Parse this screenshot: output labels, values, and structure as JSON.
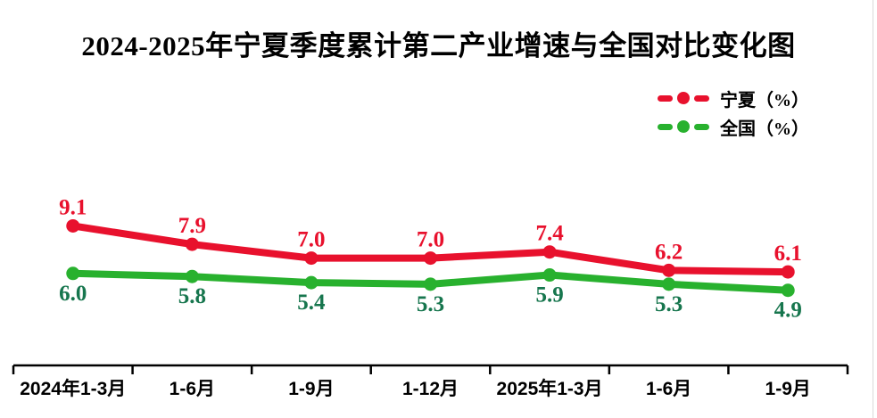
{
  "page": {
    "title": "2024-2025年宁夏季度累计第二产业增速与全国对比变化图"
  },
  "colors": {
    "ningxia_line": "#e8112d",
    "ningxia_label": "#e8112d",
    "national_line": "#28b12e",
    "national_label": "#17764e",
    "axis": "#000000",
    "edge_border": "#d9d9d9"
  },
  "chart_data": {
    "type": "line",
    "title": "2024-2025年宁夏季度累计第二产业增速与全国对比变化图",
    "categories": [
      "2024年1-3月",
      "1-6月",
      "1-9月",
      "1-12月",
      "2025年1-3月",
      "1-6月",
      "1-9月"
    ],
    "series": [
      {
        "name": "宁夏（%）",
        "values": [
          9.1,
          7.9,
          7.0,
          7.0,
          7.4,
          6.2,
          6.1
        ],
        "color": "#e8112d",
        "label_color": "#e8112d",
        "label_position": "above"
      },
      {
        "name": "全国（%）",
        "values": [
          6.0,
          5.8,
          5.4,
          5.3,
          5.9,
          5.3,
          4.9
        ],
        "color": "#28b12e",
        "label_color": "#17764e",
        "label_position": "below"
      }
    ],
    "xlabel": "",
    "ylabel": "",
    "ylim": [
      0,
      10
    ],
    "grid": false,
    "y_axis_visible": false,
    "legend_position": "top-right",
    "data_labels": true
  }
}
